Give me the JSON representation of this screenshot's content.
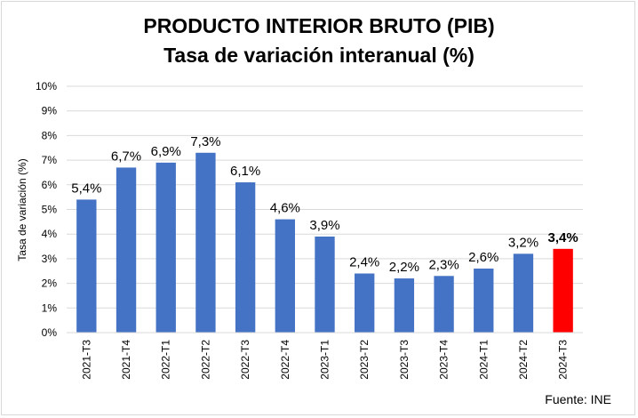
{
  "chart_data": {
    "type": "bar",
    "title": "PRODUCTO INTERIOR BRUTO (PIB)",
    "subtitle": "Tasa de variación interanual (%)",
    "ylabel": "Tasa de variación (%)",
    "xlabel": "",
    "ylim": [
      0,
      10
    ],
    "yticks": [
      "0%",
      "1%",
      "2%",
      "3%",
      "4%",
      "5%",
      "6%",
      "7%",
      "8%",
      "9%",
      "10%"
    ],
    "grid": true,
    "categories": [
      "2021-T3",
      "2021-T4",
      "2022-T1",
      "2022-T2",
      "2022-T3",
      "2022-T4",
      "2023-T1",
      "2023-T2",
      "2023-T3",
      "2023-T4",
      "2024-T1",
      "2024-T2",
      "2024-T3"
    ],
    "values": [
      5.4,
      6.7,
      6.9,
      7.3,
      6.1,
      4.6,
      3.9,
      2.4,
      2.2,
      2.3,
      2.6,
      3.2,
      3.4
    ],
    "data_labels": [
      "5,4%",
      "6,7%",
      "6,9%",
      "7,3%",
      "6,1%",
      "4,6%",
      "3,9%",
      "2,4%",
      "2,2%",
      "2,3%",
      "2,6%",
      "3,2%",
      "3,4%"
    ],
    "highlight_index": 12,
    "bar_color": "#4472c4",
    "highlight_color": "#ff0000"
  },
  "source": "Fuente: INE"
}
